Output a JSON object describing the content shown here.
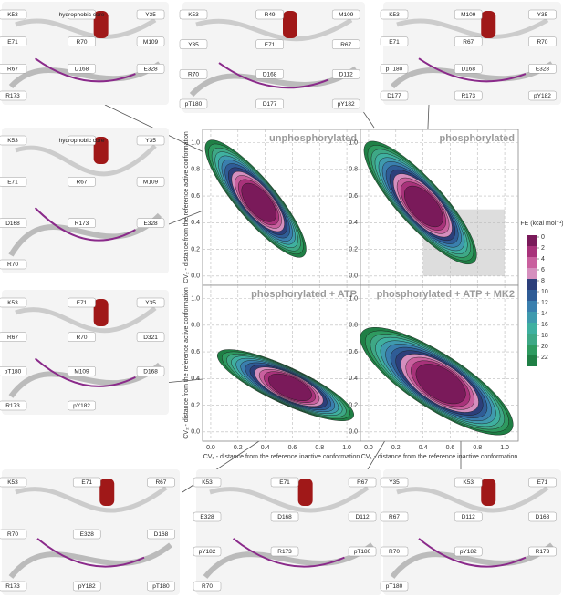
{
  "chart_data": [
    {
      "type": "contour",
      "title": "unphosphorylated",
      "ylabel": "CV₂ - distance from the reference active conformation",
      "xlim": [
        -0.06,
        1.1
      ],
      "ylim": [
        -0.07,
        1.1
      ],
      "xticks": [
        0,
        0.2,
        0.4,
        0.6,
        0.8,
        1
      ],
      "yticks": [
        {
          "value": 0,
          "label": "0.0"
        },
        {
          "value": 0.2,
          "label": "0.2"
        },
        {
          "value": 0.4,
          "label": "0.4"
        },
        {
          "value": 0.6,
          "label": "0.6"
        },
        {
          "value": 0.8,
          "label": "0.8"
        },
        {
          "value": 1,
          "label": "1.0"
        }
      ],
      "grid": true
    },
    {
      "type": "contour",
      "title": "phosphorylated",
      "xlim": [
        -0.06,
        1.1
      ],
      "ylim": [
        -0.07,
        1.1
      ],
      "xticks": [
        0,
        0.2,
        0.4,
        0.6,
        0.8,
        1
      ],
      "yticks": [
        {
          "value": 0,
          "label": "0.0"
        },
        {
          "value": 0.2,
          "label": "0.2"
        },
        {
          "value": 0.4,
          "label": "0.4"
        },
        {
          "value": 0.6,
          "label": "0.6"
        },
        {
          "value": 0.8,
          "label": "0.8"
        },
        {
          "value": 1,
          "label": "1.0"
        }
      ],
      "grid": true,
      "highlight": {
        "x": [
          0.4,
          1
        ],
        "y": [
          0,
          0.5
        ]
      }
    },
    {
      "type": "contour",
      "title": "phosphorylated + ATP",
      "xlabel": "CV₁ - distance from the reference inactive conformation",
      "ylabel": "CV₂ - distance from the reference active conformation",
      "xlim": [
        -0.06,
        1.1
      ],
      "ylim": [
        -0.07,
        1.1
      ],
      "xticks": [
        {
          "value": 0,
          "label": "0.0"
        },
        {
          "value": 0.2,
          "label": "0.2"
        },
        {
          "value": 0.4,
          "label": "0.4"
        },
        {
          "value": 0.6,
          "label": "0.6"
        },
        {
          "value": 0.8,
          "label": "0.8"
        },
        {
          "value": 1,
          "label": "1.0"
        }
      ],
      "yticks": [
        {
          "value": 0,
          "label": "0.0"
        },
        {
          "value": 0.2,
          "label": "0.2"
        },
        {
          "value": 0.4,
          "label": "0.4"
        },
        {
          "value": 0.6,
          "label": "0.6"
        },
        {
          "value": 0.8,
          "label": "0.8"
        },
        {
          "value": 1,
          "label": "1.0"
        }
      ],
      "grid": true
    },
    {
      "type": "contour",
      "title": "phosphorylated + ATP + MK2",
      "xlabel": "CV₁ - distance from the reference inactive conformation",
      "xlim": [
        -0.06,
        1.1
      ],
      "ylim": [
        -0.07,
        1.1
      ],
      "xticks": [
        {
          "value": 0,
          "label": "0.0"
        },
        {
          "value": 0.2,
          "label": "0.2"
        },
        {
          "value": 0.4,
          "label": "0.4"
        },
        {
          "value": 0.6,
          "label": "0.6"
        },
        {
          "value": 0.8,
          "label": "0.8"
        },
        {
          "value": 1,
          "label": "1.0"
        }
      ],
      "yticks": [
        {
          "value": 0,
          "label": "0.0"
        },
        {
          "value": 0.2,
          "label": "0.2"
        },
        {
          "value": 0.4,
          "label": "0.4"
        },
        {
          "value": 0.6,
          "label": "0.6"
        },
        {
          "value": 0.8,
          "label": "0.8"
        },
        {
          "value": 1,
          "label": "1.0"
        }
      ],
      "grid": true
    }
  ],
  "colorbar": {
    "title": "FE (kcal mol⁻¹)",
    "ticks": [
      0,
      2,
      4,
      6,
      8,
      10,
      12,
      14,
      16,
      18,
      20,
      22
    ],
    "colors": [
      "#7a1a5a",
      "#a8327a",
      "#c9609e",
      "#d58fbe",
      "#2c3f7a",
      "#2f5c96",
      "#3a7fae",
      "#3f9aae",
      "#3fb0a0",
      "#3ea886",
      "#2e9a60",
      "#1f7f45"
    ]
  },
  "structures": [
    {
      "labels": [
        "K53",
        "hydrophobic core",
        "Y35",
        "E71",
        "R70",
        "M109",
        "R67",
        "D168",
        "E328",
        "R173"
      ]
    },
    {
      "labels": [
        "K53",
        "R49",
        "M109",
        "Y35",
        "E71",
        "R67",
        "R70",
        "D168",
        "D112",
        "pT180",
        "D177",
        "pY182"
      ]
    },
    {
      "labels": [
        "K53",
        "M109",
        "Y35",
        "E71",
        "R67",
        "R70",
        "pT180",
        "D168",
        "E328",
        "D177",
        "R173",
        "pY182"
      ]
    },
    {
      "labels": [
        "K53",
        "hydrophobic core",
        "Y35",
        "E71",
        "R67",
        "M109",
        "D168",
        "R173",
        "E328",
        "R70"
      ]
    },
    {
      "labels": [
        "K53",
        "E71",
        "Y35",
        "R67",
        "R70",
        "D321",
        "pT180",
        "M109",
        "D168",
        "R173",
        "pY182"
      ]
    },
    {
      "labels": [
        "K53",
        "E71",
        "R67",
        "R70",
        "E328",
        "D168",
        "R173",
        "pY182",
        "pT180"
      ]
    },
    {
      "labels": [
        "K53",
        "E71",
        "R67",
        "E328",
        "D168",
        "D112",
        "pY182",
        "R173",
        "pT180",
        "R70"
      ]
    },
    {
      "labels": [
        "Y35",
        "K53",
        "E71",
        "R67",
        "D112",
        "D168",
        "R70",
        "pY182",
        "R173",
        "pT180"
      ]
    }
  ]
}
